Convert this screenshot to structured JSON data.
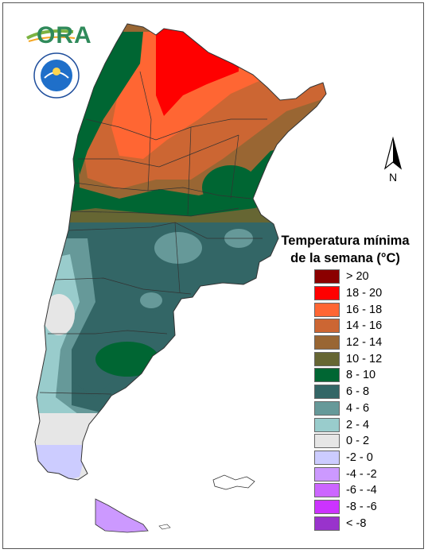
{
  "map": {
    "north_label": "N",
    "logo_text": "ORA",
    "legend": {
      "title_line1": "Temperatura mínima",
      "title_line2": "de la semana (°C)",
      "classes": [
        {
          "label": "> 20",
          "color": "#8B0000"
        },
        {
          "label": "18 - 20",
          "color": "#FF0000"
        },
        {
          "label": "16 - 18",
          "color": "#FF6633"
        },
        {
          "label": "14 - 16",
          "color": "#CC6633"
        },
        {
          "label": "12 - 14",
          "color": "#996633"
        },
        {
          "label": "10 - 12",
          "color": "#666633"
        },
        {
          "label": "8 - 10",
          "color": "#006633"
        },
        {
          "label": "6 - 8",
          "color": "#336666"
        },
        {
          "label": "4 - 6",
          "color": "#669999"
        },
        {
          "label": "2 - 4",
          "color": "#99CCCC"
        },
        {
          "label": "0 - 2",
          "color": "#E6E6E6"
        },
        {
          "label": "-2 - 0",
          "color": "#CCCCFF"
        },
        {
          "label": "-4 - -2",
          "color": "#CC99FF"
        },
        {
          "label": "-6 - -4",
          "color": "#CC66FF"
        },
        {
          "label": "-8 - -6",
          "color": "#CC33FF"
        },
        {
          "label": "< -8",
          "color": "#9933CC"
        }
      ]
    }
  }
}
